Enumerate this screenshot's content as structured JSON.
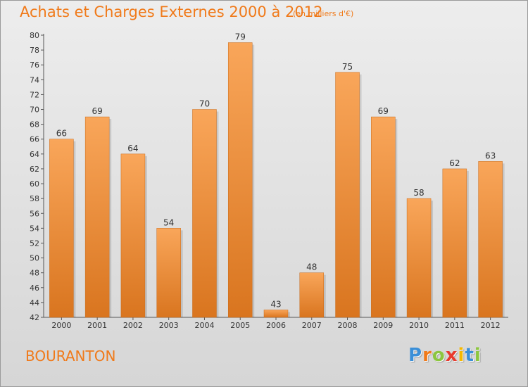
{
  "header": {
    "title": "Achats et Charges Externes 2000 à 2012",
    "subtitle": "(en milliers d'€)"
  },
  "footer": {
    "commune": "BOURANTON",
    "logo_text": "Proxiti",
    "logo_letters": [
      {
        "char": "P",
        "color": "#3a8fd8"
      },
      {
        "char": "r",
        "color": "#f07a1a"
      },
      {
        "char": "o",
        "color": "#8cc63f"
      },
      {
        "char": "x",
        "color": "#e83a2e"
      },
      {
        "char": "i",
        "color": "#f5b800"
      },
      {
        "char": "t",
        "color": "#3a8fd8"
      },
      {
        "char": "i",
        "color": "#8cc63f"
      }
    ]
  },
  "colors": {
    "bar_top": "#f9a65a",
    "bar_bottom": "#d9751f",
    "accent": "#f07a1a"
  },
  "chart_data": {
    "type": "bar",
    "title": "Achats et Charges Externes 2000 à 2012",
    "subtitle": "(en milliers d'€)",
    "categories": [
      "2000",
      "2001",
      "2002",
      "2003",
      "2004",
      "2005",
      "2006",
      "2007",
      "2008",
      "2009",
      "2010",
      "2011",
      "2012"
    ],
    "values": [
      66,
      69,
      64,
      54,
      70,
      79,
      43,
      48,
      75,
      69,
      58,
      62,
      63
    ],
    "ylim": [
      42,
      80
    ],
    "yticks": [
      42,
      44,
      46,
      48,
      50,
      52,
      54,
      56,
      58,
      60,
      62,
      64,
      66,
      68,
      70,
      72,
      74,
      76,
      78,
      80
    ],
    "grid": false,
    "xlabel": "",
    "ylabel": ""
  }
}
